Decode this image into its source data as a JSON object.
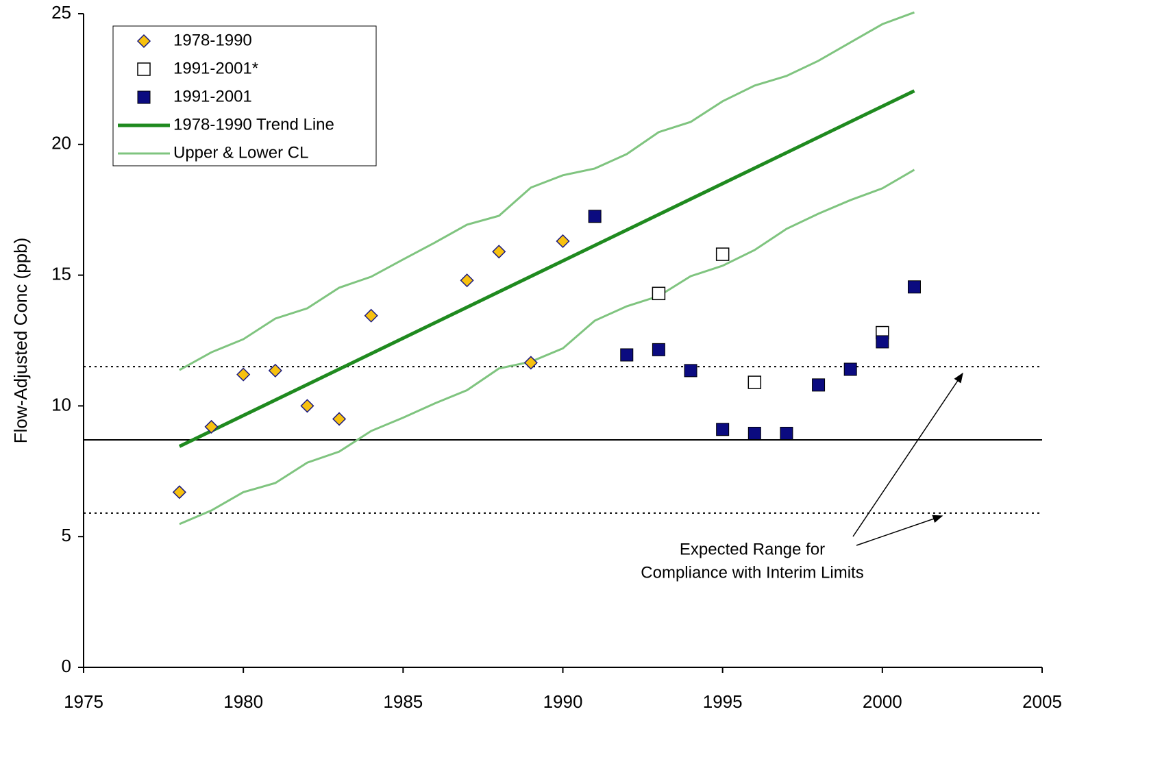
{
  "chart_data": {
    "type": "scatter",
    "y_label": "Flow-Adjusted Conc (ppb)",
    "xlim": [
      1975,
      2005
    ],
    "xticks": [
      1975,
      1980,
      1985,
      1990,
      1995,
      2000,
      2005
    ],
    "ylim": [
      0,
      25
    ],
    "yticks": [
      0,
      5,
      10,
      15,
      20,
      25
    ],
    "legend": "upper-left",
    "series": [
      {
        "name": "1978-1990",
        "marker": "diamond",
        "color": "#f7c10f",
        "x": [
          1978,
          1979,
          1980,
          1981,
          1982,
          1983,
          1984,
          1987,
          1988,
          1989,
          1990
        ],
        "values": [
          6.7,
          9.2,
          11.2,
          11.35,
          10.0,
          9.5,
          13.45,
          14.8,
          15.9,
          11.65,
          16.3
        ]
      },
      {
        "name": "1991-2001*",
        "marker": "open-square",
        "color": "#ffffff",
        "x": [
          1993,
          1995,
          1996,
          2000
        ],
        "values": [
          14.3,
          15.8,
          10.9,
          12.8
        ]
      },
      {
        "name": "1991-2001",
        "marker": "square",
        "color": "#0b0b80",
        "x": [
          1991,
          1992,
          1993,
          1994,
          1995,
          1996,
          1997,
          1998,
          1999,
          2000,
          2001
        ],
        "values": [
          17.25,
          11.95,
          12.15,
          11.35,
          9.1,
          8.95,
          8.95,
          10.8,
          11.4,
          12.45,
          14.55
        ]
      },
      {
        "name": "1978-1990 Trend Line",
        "marker": "line",
        "color": "#1f8a1f",
        "x": [
          1978,
          2001
        ],
        "values": [
          8.45,
          22.05
        ]
      },
      {
        "name": "Upper & Lower CL",
        "marker": "band",
        "color": "#7fc47f",
        "x": [
          1978,
          1979,
          1980,
          1981,
          1982,
          1983,
          1984,
          1985,
          1986,
          1987,
          1988,
          1989,
          1990,
          1991,
          1992,
          1993,
          1994,
          1995,
          1996,
          1997,
          1998,
          1999,
          2000,
          2001
        ],
        "upper": [
          11.37,
          12.05,
          12.55,
          13.34,
          13.73,
          14.52,
          14.94,
          15.6,
          16.25,
          16.93,
          17.27,
          18.35,
          18.82,
          19.08,
          19.63,
          20.47,
          20.86,
          21.65,
          22.25,
          22.62,
          23.2,
          23.9,
          24.6,
          25.05
        ],
        "lower": [
          5.48,
          6.0,
          6.7,
          7.05,
          7.83,
          8.25,
          9.04,
          9.55,
          10.1,
          10.6,
          11.43,
          11.69,
          12.2,
          13.26,
          13.81,
          14.2,
          14.96,
          15.36,
          15.96,
          16.77,
          17.35,
          17.87,
          18.32,
          19.03
        ]
      }
    ],
    "reference_lines": [
      {
        "value": 11.5,
        "style": "dotted"
      },
      {
        "value": 8.7,
        "style": "solid"
      },
      {
        "value": 5.9,
        "style": "dotted"
      }
    ],
    "annotation": [
      "Expected Range for",
      "Compliance with Interim Limits"
    ]
  }
}
